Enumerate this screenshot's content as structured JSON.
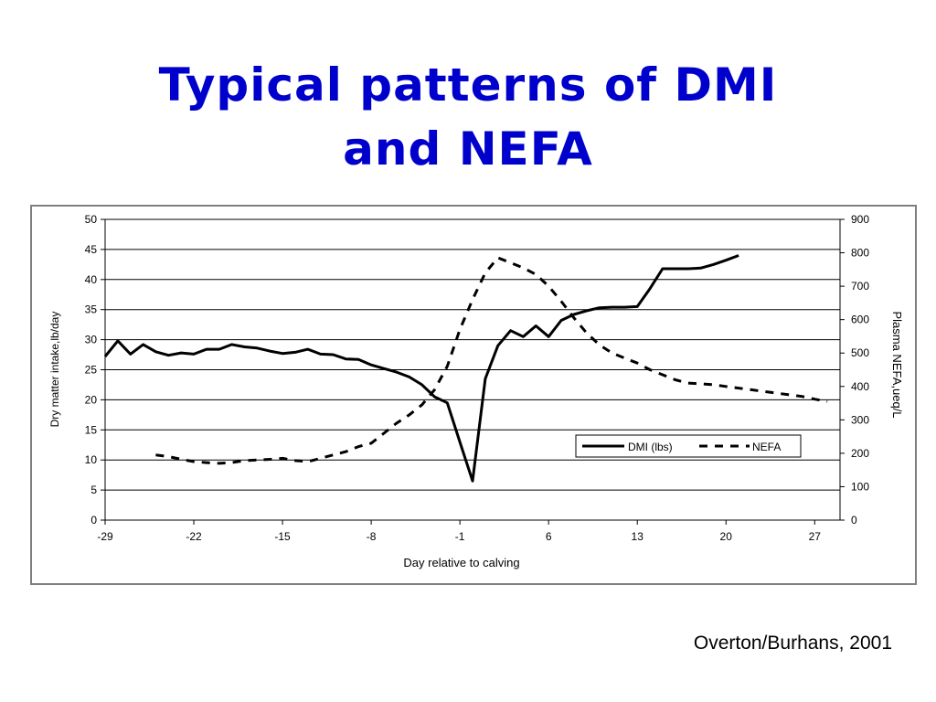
{
  "slide": {
    "title_line1": "Typical patterns of DMI",
    "title_line2": "and NEFA",
    "credit": "Overton/Burhans, 2001"
  },
  "colors": {
    "title": "#0000cc",
    "line": "#000000",
    "frame": "#7f7f7f"
  },
  "chart_data": {
    "type": "line",
    "title": "",
    "xlabel": "Day relative to calving",
    "ylabel": "Dry matter intake,lb/day",
    "y2label": "Plasma NEFA,ueq/L",
    "xlim": [
      -29,
      29
    ],
    "ylim": [
      0,
      50
    ],
    "y2lim": [
      0,
      900
    ],
    "xticks": [
      -29,
      -22,
      -15,
      -8,
      -1,
      6,
      13,
      20,
      27
    ],
    "xtick_labels": [
      "-29",
      "-22",
      "-15",
      "-8",
      "-1",
      "6",
      "13",
      "20",
      "27"
    ],
    "yticks": [
      0,
      5,
      10,
      15,
      20,
      25,
      30,
      35,
      40,
      45,
      50
    ],
    "ytick_labels": [
      "0",
      "5",
      "10",
      "15",
      "20",
      "25",
      "30",
      "35",
      "40",
      "45",
      "50"
    ],
    "y2ticks": [
      0,
      100,
      200,
      300,
      400,
      500,
      600,
      700,
      800,
      900
    ],
    "y2tick_labels": [
      "0",
      "100",
      "200",
      "300",
      "400",
      "500",
      "600",
      "700",
      "800",
      "900"
    ],
    "grid": "horizontal",
    "legend_position": "lower-right",
    "series": [
      {
        "name": "DMI (lbs)",
        "axis": "left",
        "style": "solid",
        "x": [
          -29,
          -28,
          -27,
          -26,
          -25,
          -24,
          -23,
          -22,
          -21,
          -20,
          -19,
          -18,
          -17,
          -16,
          -15,
          -14,
          -13,
          -12,
          -11,
          -10,
          -9,
          -8,
          -7,
          -6,
          -5,
          -4,
          -3,
          -2,
          -1,
          0,
          1,
          2,
          3,
          4,
          5,
          6,
          7,
          8,
          9,
          10,
          11,
          12,
          13,
          14,
          15,
          16,
          17,
          18,
          19,
          20,
          21
        ],
        "values": [
          27.2,
          29.8,
          27.6,
          29.2,
          28.0,
          27.4,
          27.8,
          27.6,
          28.4,
          28.4,
          29.2,
          28.8,
          28.6,
          28.1,
          27.7,
          27.9,
          28.4,
          27.6,
          27.5,
          26.8,
          26.7,
          25.8,
          25.2,
          24.6,
          23.8,
          22.5,
          20.5,
          19.5,
          13.0,
          6.5,
          23.5,
          29.0,
          31.5,
          30.5,
          32.3,
          30.5,
          33.2,
          34.2,
          34.8,
          35.3,
          35.4,
          35.4,
          35.5,
          38.5,
          41.8,
          41.8,
          41.8,
          41.9,
          42.5,
          43.2,
          44.0
        ]
      },
      {
        "name": "NEFA",
        "axis": "right",
        "style": "dashed",
        "x": [
          -25,
          -24,
          -23,
          -22,
          -21,
          -20,
          -19,
          -18,
          -17,
          -16,
          -15,
          -14,
          -13,
          -12,
          -11,
          -10,
          -9,
          -8,
          -7,
          -6,
          -5,
          -4,
          -3,
          -2,
          -1,
          0,
          1,
          2,
          3,
          4,
          5,
          6,
          7,
          8,
          9,
          10,
          11,
          12,
          13,
          14,
          15,
          16,
          17,
          18,
          19,
          20,
          21,
          22,
          23,
          24,
          25,
          26,
          27,
          28
        ],
        "values": [
          195,
          190,
          182,
          175,
          172,
          170,
          172,
          178,
          180,
          182,
          185,
          178,
          175,
          185,
          195,
          205,
          220,
          230,
          260,
          290,
          315,
          345,
          390,
          460,
          570,
          660,
          740,
          785,
          770,
          755,
          735,
          700,
          655,
          605,
          560,
          525,
          500,
          485,
          470,
          450,
          435,
          420,
          410,
          408,
          405,
          400,
          395,
          390,
          385,
          380,
          375,
          370,
          362,
          355
        ]
      }
    ]
  }
}
